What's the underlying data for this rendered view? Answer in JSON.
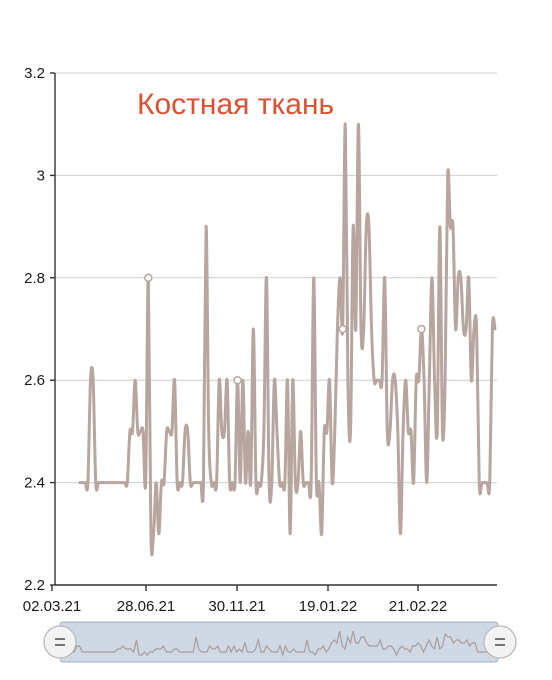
{
  "chart_data": {
    "type": "line",
    "title": "Костная ткань",
    "xlabel": "",
    "ylabel": "",
    "ylim": [
      2.2,
      3.2
    ],
    "y_ticks": [
      "2.2",
      "2.4",
      "2.6",
      "2.8",
      "3",
      "3.2"
    ],
    "x_tick_labels": [
      "02.03.21",
      "28.06.21",
      "30.11.21",
      "19.01.22",
      "21.02.22"
    ],
    "grid": true,
    "series_color": "#b7a59e",
    "title_color": "#e0502e",
    "series": [
      {
        "values": [
          2.4,
          2.4,
          2.4,
          2.4,
          2.6,
          2.6,
          2.4,
          2.4,
          2.4,
          2.4,
          2.4,
          2.4,
          2.4,
          2.4,
          2.4,
          2.4,
          2.4,
          2.4,
          2.4,
          2.5,
          2.5,
          2.6,
          2.5,
          2.5,
          2.5,
          2.4,
          2.8,
          2.3,
          2.3,
          2.4,
          2.3,
          2.4,
          2.4,
          2.5,
          2.5,
          2.5,
          2.6,
          2.4,
          2.4,
          2.4,
          2.5,
          2.5,
          2.4,
          2.4,
          2.4,
          2.4,
          2.4,
          2.4,
          2.9,
          2.5,
          2.4,
          2.4,
          2.4,
          2.6,
          2.5,
          2.5,
          2.6,
          2.4,
          2.4,
          2.4,
          2.6,
          2.4,
          2.6,
          2.4,
          2.5,
          2.4,
          2.7,
          2.4,
          2.4,
          2.4,
          2.5,
          2.8,
          2.4,
          2.4,
          2.6,
          2.5,
          2.4,
          2.4,
          2.4,
          2.6,
          2.3,
          2.6,
          2.4,
          2.4,
          2.5,
          2.4,
          2.4,
          2.4,
          2.4,
          2.8,
          2.4,
          2.4,
          2.3,
          2.5,
          2.5,
          2.6,
          2.4,
          2.5,
          2.7,
          2.8,
          2.7,
          3.1,
          2.6,
          2.5,
          2.9,
          2.7,
          3.1,
          2.7,
          2.7,
          2.9,
          2.9,
          2.7,
          2.6,
          2.6,
          2.6,
          2.6,
          2.8,
          2.5,
          2.5,
          2.6,
          2.6,
          2.5,
          2.3,
          2.5,
          2.6,
          2.5,
          2.5,
          2.4,
          2.6,
          2.6,
          2.7,
          2.6,
          2.4,
          2.6,
          2.8,
          2.6,
          2.5,
          2.9,
          2.5,
          2.6,
          3.0,
          2.9,
          2.9,
          2.7,
          2.8,
          2.8,
          2.7,
          2.7,
          2.8,
          2.6,
          2.7,
          2.7,
          2.4,
          2.4,
          2.4,
          2.4,
          2.4,
          2.7,
          2.7
        ],
        "markers": [
          26,
          60,
          100,
          130
        ]
      }
    ]
  }
}
